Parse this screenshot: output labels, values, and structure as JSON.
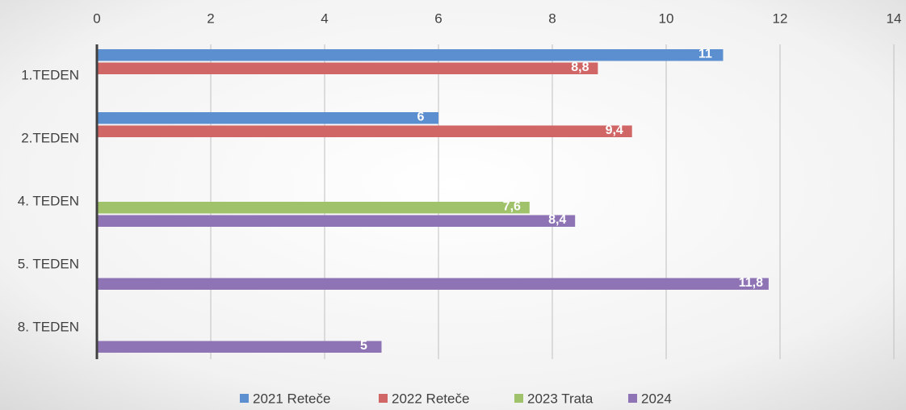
{
  "chart_data": {
    "type": "barh",
    "categories": [
      "1.TEDEN",
      "2.TEDEN",
      "4. TEDEN",
      "5. TEDEN",
      "8. TEDEN"
    ],
    "series": [
      {
        "name": "2021 Reteče",
        "color": "#5b8fd0",
        "values": [
          11,
          6,
          null,
          null,
          null
        ],
        "value_labels": [
          "11",
          "6",
          null,
          null,
          null
        ]
      },
      {
        "name": "2022 Reteče",
        "color": "#d06665",
        "values": [
          8.8,
          9.4,
          null,
          null,
          null
        ],
        "value_labels": [
          "8,8",
          "9,4",
          null,
          null,
          null
        ]
      },
      {
        "name": "2023 Trata",
        "color": "#9fc26a",
        "values": [
          null,
          null,
          7.6,
          null,
          null
        ],
        "value_labels": [
          null,
          null,
          "7,6",
          null,
          null
        ]
      },
      {
        "name": "2024",
        "color": "#8e74b4",
        "values": [
          null,
          null,
          8.4,
          11.8,
          5
        ],
        "value_labels": [
          null,
          null,
          "8,4",
          "11,8",
          "5"
        ]
      }
    ],
    "xlim": [
      0,
      14
    ],
    "xticks": [
      0,
      2,
      4,
      6,
      8,
      10,
      12,
      14
    ],
    "grid": true,
    "legend": "bottom"
  }
}
